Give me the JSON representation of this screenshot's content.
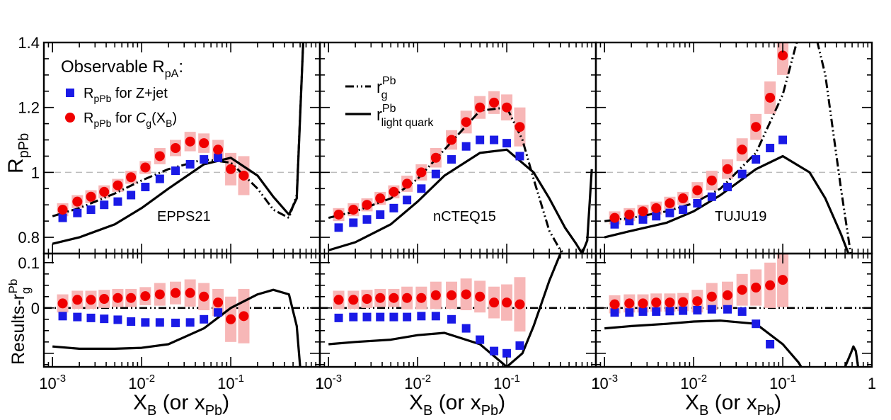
{
  "chart_data": [
    {
      "type": "scatter",
      "panel": "EPPS21",
      "label": "EPPS21",
      "top": {
        "ylabel": "R_pPb",
        "ylim": [
          0.75,
          1.4
        ],
        "yticks": [
          0.8,
          1,
          1.2,
          1.4
        ],
        "legend_title": "Observable R_pA:",
        "series": [
          {
            "name": "R_pPb for Z+jet",
            "marker": "square",
            "color": "#1a1ae6",
            "x": [
              0.0013,
              0.0019,
              0.0027,
              0.0038,
              0.0054,
              0.0076,
              0.011,
              0.016,
              0.024,
              0.035,
              0.05,
              0.072
            ],
            "y": [
              0.86,
              0.875,
              0.885,
              0.9,
              0.91,
              0.93,
              0.955,
              0.98,
              1.005,
              1.025,
              1.04,
              1.045
            ]
          },
          {
            "name": "R_pPb for C_g(X_B)",
            "marker": "circle",
            "color": "#f00000",
            "x": [
              0.0013,
              0.0019,
              0.0027,
              0.0038,
              0.0054,
              0.0076,
              0.011,
              0.016,
              0.024,
              0.035,
              0.05,
              0.072,
              0.1,
              0.14
            ],
            "y": [
              0.885,
              0.91,
              0.925,
              0.94,
              0.96,
              0.985,
              1.015,
              1.05,
              1.075,
              1.095,
              1.09,
              1.07,
              1.01,
              0.99
            ],
            "err": [
              0.02,
              0.02,
              0.02,
              0.02,
              0.02,
              0.02,
              0.02,
              0.025,
              0.025,
              0.03,
              0.03,
              0.03,
              0.05,
              0.06
            ]
          },
          {
            "name": "r_g^Pb",
            "style": "dash-dot-dot",
            "x": [
              0.001,
              0.002,
              0.005,
              0.01,
              0.02,
              0.05,
              0.1,
              0.2,
              0.3,
              0.45,
              0.55,
              0.65
            ],
            "y": [
              0.865,
              0.89,
              0.935,
              0.975,
              1.01,
              1.04,
              1.03,
              0.95,
              0.885,
              0.86,
              0.93,
              1.4
            ]
          },
          {
            "name": "r_light quark^Pb",
            "style": "solid",
            "x": [
              0.001,
              0.002,
              0.005,
              0.01,
              0.02,
              0.05,
              0.1,
              0.2,
              0.3,
              0.45,
              0.55,
              0.65
            ],
            "y": [
              0.78,
              0.8,
              0.84,
              0.89,
              0.95,
              1.025,
              1.045,
              0.99,
              0.925,
              0.87,
              0.92,
              1.4
            ]
          }
        ]
      },
      "bottom": {
        "ylabel": "Results-r_g^Pb",
        "ylim": [
          -0.13,
          0.12
        ],
        "yticks": [
          0,
          0.1
        ],
        "series": [
          {
            "name": "R_pPb for Z+jet",
            "marker": "square",
            "color": "#1a1ae6",
            "x": [
              0.0013,
              0.0019,
              0.0027,
              0.0038,
              0.0054,
              0.0076,
              0.011,
              0.016,
              0.024,
              0.035,
              0.05,
              0.072
            ],
            "y": [
              -0.018,
              -0.02,
              -0.022,
              -0.024,
              -0.026,
              -0.03,
              -0.032,
              -0.032,
              -0.033,
              -0.032,
              -0.025,
              -0.01
            ]
          },
          {
            "name": "R_pPb for C_g(X_B)",
            "marker": "circle",
            "color": "#f00000",
            "x": [
              0.0013,
              0.0019,
              0.0027,
              0.0038,
              0.0054,
              0.0076,
              0.011,
              0.016,
              0.024,
              0.035,
              0.05,
              0.072,
              0.1,
              0.14
            ],
            "y": [
              0.01,
              0.018,
              0.018,
              0.02,
              0.022,
              0.022,
              0.026,
              0.03,
              0.033,
              0.033,
              0.025,
              0.012,
              -0.025,
              -0.018
            ],
            "err": [
              0.02,
              0.02,
              0.02,
              0.02,
              0.02,
              0.02,
              0.02,
              0.025,
              0.025,
              0.03,
              0.03,
              0.03,
              0.05,
              0.06
            ]
          },
          {
            "name": "light quark minus gluon",
            "style": "solid",
            "x": [
              0.001,
              0.002,
              0.005,
              0.01,
              0.02,
              0.05,
              0.1,
              0.2,
              0.3,
              0.45,
              0.55,
              0.6
            ],
            "y": [
              -0.085,
              -0.09,
              -0.09,
              -0.088,
              -0.08,
              -0.045,
              0.0,
              0.03,
              0.04,
              0.03,
              -0.04,
              -0.13
            ]
          }
        ]
      }
    },
    {
      "type": "scatter",
      "panel": "nCTEQ15",
      "label": "nCTEQ15",
      "top": {
        "ylim": [
          0.75,
          1.4
        ],
        "series": [
          {
            "name": "R_pPb for Z+jet",
            "marker": "square",
            "color": "#1a1ae6",
            "x": [
              0.0013,
              0.0019,
              0.0027,
              0.0038,
              0.0054,
              0.0076,
              0.011,
              0.016,
              0.024,
              0.035,
              0.05,
              0.072,
              0.1,
              0.14
            ],
            "y": [
              0.83,
              0.845,
              0.855,
              0.87,
              0.89,
              0.915,
              0.95,
              0.995,
              1.04,
              1.08,
              1.1,
              1.1,
              1.09,
              1.05
            ]
          },
          {
            "name": "R_pPb for C_g(X_B)",
            "marker": "circle",
            "color": "#f00000",
            "x": [
              0.0013,
              0.0019,
              0.0027,
              0.0038,
              0.0054,
              0.0076,
              0.011,
              0.016,
              0.024,
              0.035,
              0.05,
              0.072,
              0.1,
              0.14
            ],
            "y": [
              0.87,
              0.885,
              0.9,
              0.92,
              0.94,
              0.965,
              1.0,
              1.045,
              1.1,
              1.155,
              1.2,
              1.215,
              1.2,
              1.14
            ],
            "err": [
              0.02,
              0.02,
              0.02,
              0.02,
              0.02,
              0.025,
              0.025,
              0.03,
              0.03,
              0.035,
              0.035,
              0.035,
              0.04,
              0.06
            ]
          },
          {
            "name": "r_g^Pb",
            "style": "dash-dot-dot",
            "x": [
              0.001,
              0.002,
              0.005,
              0.01,
              0.02,
              0.05,
              0.1,
              0.15,
              0.2,
              0.3,
              0.4,
              0.45
            ],
            "y": [
              0.86,
              0.88,
              0.92,
              0.98,
              1.07,
              1.19,
              1.2,
              1.1,
              0.98,
              0.82,
              0.76,
              0.75
            ]
          },
          {
            "name": "r_light quark^Pb",
            "style": "solid",
            "x": [
              0.001,
              0.002,
              0.005,
              0.01,
              0.02,
              0.05,
              0.1,
              0.2,
              0.3,
              0.45,
              0.6,
              0.7,
              0.8,
              0.9
            ],
            "y": [
              0.76,
              0.785,
              0.84,
              0.91,
              0.99,
              1.06,
              1.07,
              1.0,
              0.92,
              0.83,
              0.78,
              0.75,
              0.79,
              1.01
            ]
          }
        ]
      },
      "bottom": {
        "ylim": [
          -0.13,
          0.12
        ],
        "series": [
          {
            "name": "R_pPb for Z+jet",
            "marker": "square",
            "color": "#1a1ae6",
            "x": [
              0.0013,
              0.0019,
              0.0027,
              0.0038,
              0.0054,
              0.0076,
              0.011,
              0.016,
              0.024,
              0.035,
              0.05,
              0.072,
              0.1,
              0.14
            ],
            "y": [
              -0.022,
              -0.02,
              -0.02,
              -0.02,
              -0.02,
              -0.02,
              -0.018,
              -0.018,
              -0.025,
              -0.045,
              -0.07,
              -0.095,
              -0.1,
              -0.083
            ]
          },
          {
            "name": "R_pPb for C_g(X_B)",
            "marker": "circle",
            "color": "#f00000",
            "x": [
              0.0013,
              0.0019,
              0.0027,
              0.0038,
              0.0054,
              0.0076,
              0.011,
              0.016,
              0.024,
              0.035,
              0.05,
              0.072,
              0.1,
              0.14
            ],
            "y": [
              0.018,
              0.018,
              0.02,
              0.022,
              0.022,
              0.022,
              0.022,
              0.028,
              0.028,
              0.03,
              0.025,
              0.012,
              0.012,
              0.008
            ],
            "err": [
              0.02,
              0.02,
              0.02,
              0.02,
              0.02,
              0.025,
              0.025,
              0.03,
              0.03,
              0.035,
              0.035,
              0.035,
              0.04,
              0.06
            ]
          },
          {
            "name": "light quark minus gluon",
            "style": "solid",
            "x": [
              0.001,
              0.002,
              0.005,
              0.01,
              0.02,
              0.05,
              0.1,
              0.15,
              0.2,
              0.3,
              0.4
            ],
            "y": [
              -0.08,
              -0.075,
              -0.07,
              -0.06,
              -0.055,
              -0.08,
              -0.13,
              -0.1,
              -0.04,
              0.06,
              0.12
            ]
          }
        ]
      }
    },
    {
      "type": "scatter",
      "panel": "TUJU19",
      "label": "TUJU19",
      "top": {
        "ylim": [
          0.75,
          1.4
        ],
        "series": [
          {
            "name": "R_pPb for Z+jet",
            "marker": "square",
            "color": "#1a1ae6",
            "x": [
              0.0013,
              0.0019,
              0.0027,
              0.0038,
              0.0054,
              0.0076,
              0.011,
              0.016,
              0.024,
              0.035,
              0.05,
              0.072,
              0.1
            ],
            "y": [
              0.84,
              0.85,
              0.855,
              0.865,
              0.875,
              0.885,
              0.905,
              0.925,
              0.955,
              0.995,
              1.04,
              1.075,
              1.1
            ]
          },
          {
            "name": "R_pPb for C_g(X_B)",
            "marker": "circle",
            "color": "#f00000",
            "x": [
              0.0013,
              0.0019,
              0.0027,
              0.0038,
              0.0054,
              0.0076,
              0.011,
              0.016,
              0.024,
              0.035,
              0.05,
              0.072,
              0.1
            ],
            "y": [
              0.86,
              0.87,
              0.88,
              0.89,
              0.905,
              0.92,
              0.945,
              0.975,
              1.01,
              1.07,
              1.14,
              1.23,
              1.36
            ],
            "err": [
              0.02,
              0.02,
              0.02,
              0.02,
              0.02,
              0.02,
              0.025,
              0.03,
              0.03,
              0.035,
              0.04,
              0.05,
              0.06
            ]
          },
          {
            "name": "r_g^Pb",
            "style": "dash-dot-dot",
            "x": [
              0.001,
              0.002,
              0.005,
              0.01,
              0.02,
              0.05,
              0.1,
              0.15,
              0.2,
              0.3,
              0.45,
              0.6
            ],
            "y": [
              0.85,
              0.86,
              0.88,
              0.905,
              0.95,
              1.06,
              1.24,
              1.42,
              1.5,
              1.3,
              0.95,
              0.72
            ]
          },
          {
            "name": "r_light quark^Pb",
            "style": "solid",
            "x": [
              0.001,
              0.002,
              0.005,
              0.01,
              0.02,
              0.05,
              0.1,
              0.2,
              0.3,
              0.45,
              0.6
            ],
            "y": [
              0.8,
              0.82,
              0.845,
              0.88,
              0.93,
              1.01,
              1.05,
              1.0,
              0.92,
              0.81,
              0.72
            ]
          }
        ]
      },
      "bottom": {
        "ylim": [
          -0.13,
          0.12
        ],
        "series": [
          {
            "name": "R_pPb for Z+jet",
            "marker": "square",
            "color": "#1a1ae6",
            "x": [
              0.0013,
              0.0019,
              0.0027,
              0.0038,
              0.0054,
              0.0076,
              0.011,
              0.016,
              0.024,
              0.035,
              0.05,
              0.072
            ],
            "y": [
              -0.01,
              -0.01,
              -0.008,
              -0.008,
              -0.007,
              -0.006,
              -0.005,
              -0.003,
              -0.003,
              -0.008,
              -0.035,
              -0.08
            ]
          },
          {
            "name": "R_pPb for C_g(X_B)",
            "marker": "circle",
            "color": "#f00000",
            "x": [
              0.0013,
              0.0019,
              0.0027,
              0.0038,
              0.0054,
              0.0076,
              0.011,
              0.016,
              0.024,
              0.035,
              0.05,
              0.072,
              0.1
            ],
            "y": [
              0.008,
              0.01,
              0.01,
              0.012,
              0.012,
              0.013,
              0.015,
              0.025,
              0.028,
              0.04,
              0.045,
              0.05,
              0.062
            ],
            "err": [
              0.02,
              0.02,
              0.02,
              0.02,
              0.02,
              0.02,
              0.025,
              0.03,
              0.03,
              0.035,
              0.04,
              0.05,
              0.06
            ]
          },
          {
            "name": "light quark minus gluon",
            "style": "solid",
            "x": [
              0.001,
              0.002,
              0.005,
              0.01,
              0.02,
              0.05,
              0.1,
              0.15,
              0.2,
              0.3
            ],
            "y": [
              -0.045,
              -0.04,
              -0.035,
              -0.03,
              -0.028,
              -0.035,
              -0.08,
              -0.12,
              -0.16,
              -0.25
            ]
          },
          {
            "name": "light quark minus gluon (rise)",
            "style": "solid",
            "x": [
              0.5,
              0.58,
              0.62,
              0.66,
              0.7
            ],
            "y": [
              -0.13,
              -0.1,
              -0.085,
              -0.095,
              -0.13
            ]
          }
        ]
      }
    }
  ],
  "axes": {
    "xlabel": "X_B (or x_Pb)",
    "xlim": [
      0.0008,
      1.0
    ],
    "xticks_major": [
      "10^-3",
      "10^-2",
      "10^-1",
      "1"
    ],
    "top_ylabel": "R_pPb",
    "bottom_ylabel": "Results-r_g^Pb",
    "top_yticks": [
      "0.8",
      "1",
      "1.2",
      "1.4"
    ],
    "bottom_yticks": [
      "0",
      "0.1"
    ],
    "reference_line_top": 1.0,
    "reference_line_bottom": 0.0
  },
  "legends": {
    "left": {
      "title": "Observable R_pA:",
      "entries": [
        "R_pPb for Z+jet",
        "R_pPb for C_g(X_B)"
      ]
    },
    "middle": {
      "entries": [
        "r_g^Pb",
        "r_light quark^Pb"
      ]
    }
  },
  "panel_labels": [
    "EPPS21",
    "nCTEQ15",
    "TUJU19"
  ]
}
